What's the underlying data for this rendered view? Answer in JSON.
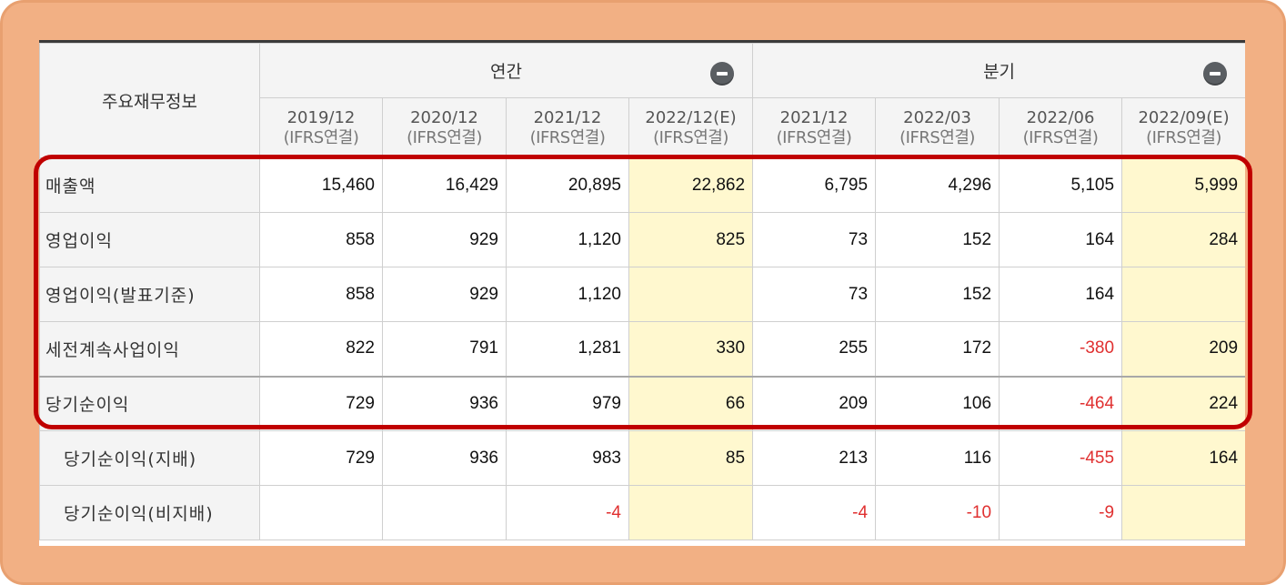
{
  "table": {
    "corner_label": "주요재무정보",
    "groups": [
      {
        "label": "연간",
        "toggle_icon": "minus-icon"
      },
      {
        "label": "분기",
        "toggle_icon": "minus-icon"
      }
    ],
    "periods": [
      {
        "date": "2019/12",
        "basis": "(IFRS연결)",
        "estimate": false
      },
      {
        "date": "2020/12",
        "basis": "(IFRS연결)",
        "estimate": false
      },
      {
        "date": "2021/12",
        "basis": "(IFRS연결)",
        "estimate": false
      },
      {
        "date": "2022/12(E)",
        "basis": "(IFRS연결)",
        "estimate": true
      },
      {
        "date": "2021/12",
        "basis": "(IFRS연결)",
        "estimate": false
      },
      {
        "date": "2022/03",
        "basis": "(IFRS연결)",
        "estimate": false
      },
      {
        "date": "2022/06",
        "basis": "(IFRS연결)",
        "estimate": false
      },
      {
        "date": "2022/09(E)",
        "basis": "(IFRS연결)",
        "estimate": true
      }
    ],
    "rows": [
      {
        "label": "매출액",
        "values": [
          "15,460",
          "16,429",
          "20,895",
          "22,862",
          "6,795",
          "4,296",
          "5,105",
          "5,999"
        ]
      },
      {
        "label": "영업이익",
        "values": [
          "858",
          "929",
          "1,120",
          "825",
          "73",
          "152",
          "164",
          "284"
        ]
      },
      {
        "label": "영업이익(발표기준)",
        "values": [
          "858",
          "929",
          "1,120",
          "",
          "73",
          "152",
          "164",
          ""
        ]
      },
      {
        "label": "세전계속사업이익",
        "values": [
          "822",
          "791",
          "1,281",
          "330",
          "255",
          "172",
          "-380",
          "209"
        ]
      },
      {
        "label": "당기순이익",
        "values": [
          "729",
          "936",
          "979",
          "66",
          "209",
          "106",
          "-464",
          "224"
        ]
      },
      {
        "label": "당기순이익(지배)",
        "values": [
          "729",
          "936",
          "983",
          "85",
          "213",
          "116",
          "-455",
          "164"
        ]
      },
      {
        "label": "당기순이익(비지배)",
        "values": [
          "",
          "",
          "-4",
          "",
          "-4",
          "-10",
          "-9",
          ""
        ]
      }
    ]
  },
  "colors": {
    "frame": "#f2b084",
    "highlight": "#c00000",
    "estimate_bg": "#fff8cf",
    "negative": "#e03030"
  }
}
